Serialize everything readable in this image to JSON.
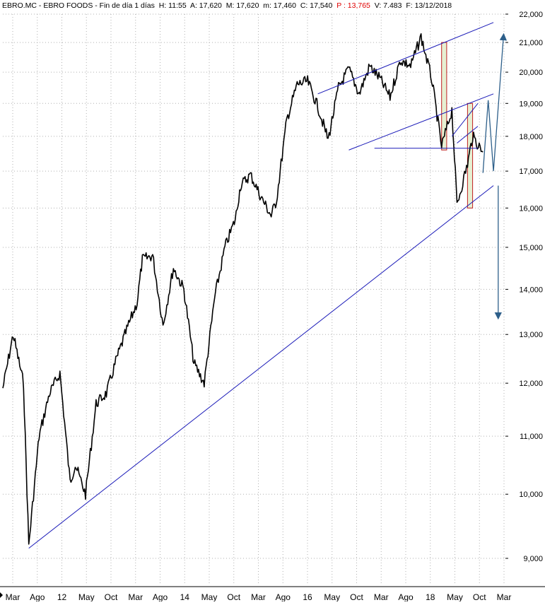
{
  "header": {
    "symbol": "EBRO.MC - EBRO FOODS - Fin de día 1 días",
    "h": "H: 11:55",
    "a": "A: 17,620",
    "m": "M: 17,620",
    "min": "m: 17,460",
    "c": "C: 17,540",
    "p": "P : 13,765",
    "v": "V: 7.483",
    "f": "F: 13/12/2018"
  },
  "colors": {
    "price": "#000000",
    "trendline": "#1a1ab8",
    "projection": "#2d5f8a",
    "box_red": "#c02020",
    "box_fill": "#e6f0d2",
    "grid": "#b0b0b0"
  },
  "chart_data": {
    "type": "line",
    "y_scale": "log",
    "ylim": [
      8800,
      22000
    ],
    "y_ticks": [
      9000,
      10000,
      11000,
      12000,
      13000,
      14000,
      15000,
      16000,
      17000,
      18000,
      19000,
      20000,
      21000,
      22000
    ],
    "y_tick_labels": [
      "9,000",
      "10,000",
      "11,000",
      "12,000",
      "13,000",
      "14,000",
      "15,000",
      "16,000",
      "17,000",
      "18,000",
      "19,000",
      "20,000",
      "21,000",
      "22,000"
    ],
    "x_tick_labels": [
      "Mar",
      "Ago",
      "12",
      "May",
      "Oct",
      "Mar",
      "Ago",
      "14",
      "May",
      "Oct",
      "Mar",
      "Ago",
      "16",
      "May",
      "Oct",
      "Mar",
      "Ago",
      "18",
      "May",
      "Oct",
      "Mar"
    ],
    "grid": true,
    "series": [
      {
        "x": [
          "2011-03",
          "2011-05",
          "2011-07",
          "2011-08",
          "2011-10",
          "2011-12",
          "2012-02",
          "2012-04",
          "2012-05",
          "2012-07",
          "2012-09",
          "2012-11",
          "2013-01",
          "2013-03",
          "2013-05",
          "2013-06",
          "2013-08",
          "2013-10",
          "2013-12",
          "2014-02",
          "2014-04",
          "2014-06",
          "2014-08",
          "2014-10",
          "2014-12",
          "2015-01",
          "2015-03",
          "2015-05",
          "2015-07",
          "2015-08",
          "2015-10",
          "2015-12",
          "2016-02",
          "2016-04",
          "2016-06",
          "2016-08",
          "2016-10",
          "2016-12",
          "2017-02",
          "2017-04",
          "2017-06",
          "2017-08",
          "2017-10",
          "2017-12",
          "2018-02",
          "2018-04",
          "2018-06",
          "2018-07",
          "2018-09",
          "2018-10",
          "2018-12"
        ],
        "values": [
          11900,
          13000,
          12000,
          9200,
          11000,
          11800,
          12200,
          10200,
          10500,
          10000,
          11600,
          11800,
          12500,
          13100,
          13700,
          14700,
          14800,
          13200,
          14500,
          14000,
          12400,
          12000,
          13800,
          15000,
          15700,
          16600,
          16900,
          16300,
          15800,
          16200,
          18500,
          19600,
          19700,
          18900,
          17900,
          19500,
          20100,
          19300,
          20200,
          19800,
          19200,
          20400,
          20200,
          21200,
          19800,
          17700,
          18800,
          16100,
          17200,
          18000,
          17540
        ]
      }
    ],
    "annotations": {
      "main_trendline": [
        [
          "2011-08",
          9150
        ],
        [
          "2019-02",
          16600
        ]
      ],
      "channel_upper": [
        [
          "2016-04",
          19300
        ],
        [
          "2019-02",
          21700
        ]
      ],
      "channel_lower": [
        [
          "2016-10",
          17600
        ],
        [
          "2019-02",
          19300
        ]
      ],
      "horizontal_support": [
        [
          "2017-03",
          17650
        ],
        [
          "2018-11",
          17650
        ]
      ],
      "short_channel": [
        [
          "2018-06",
          18000
        ],
        [
          "2018-11",
          19000
        ]
      ],
      "short_channel_low": [
        [
          "2018-07",
          17800
        ],
        [
          "2018-11",
          18300
        ]
      ],
      "projection_path": [
        [
          "2018-12",
          16950
        ],
        [
          "2019-01",
          19100
        ],
        [
          "2019-02",
          17000
        ],
        [
          "2019-04",
          21200
        ]
      ],
      "projection_down": [
        [
          "2019-03",
          16600
        ],
        [
          "2019-03",
          13400
        ]
      ],
      "boxes": [
        {
          "x0": "2018-04",
          "x1": "2018-05",
          "y0": 17600,
          "y1": 21000
        },
        {
          "x0": "2018-09",
          "x1": "2018-10",
          "y0": 16000,
          "y1": 19000
        }
      ]
    }
  }
}
